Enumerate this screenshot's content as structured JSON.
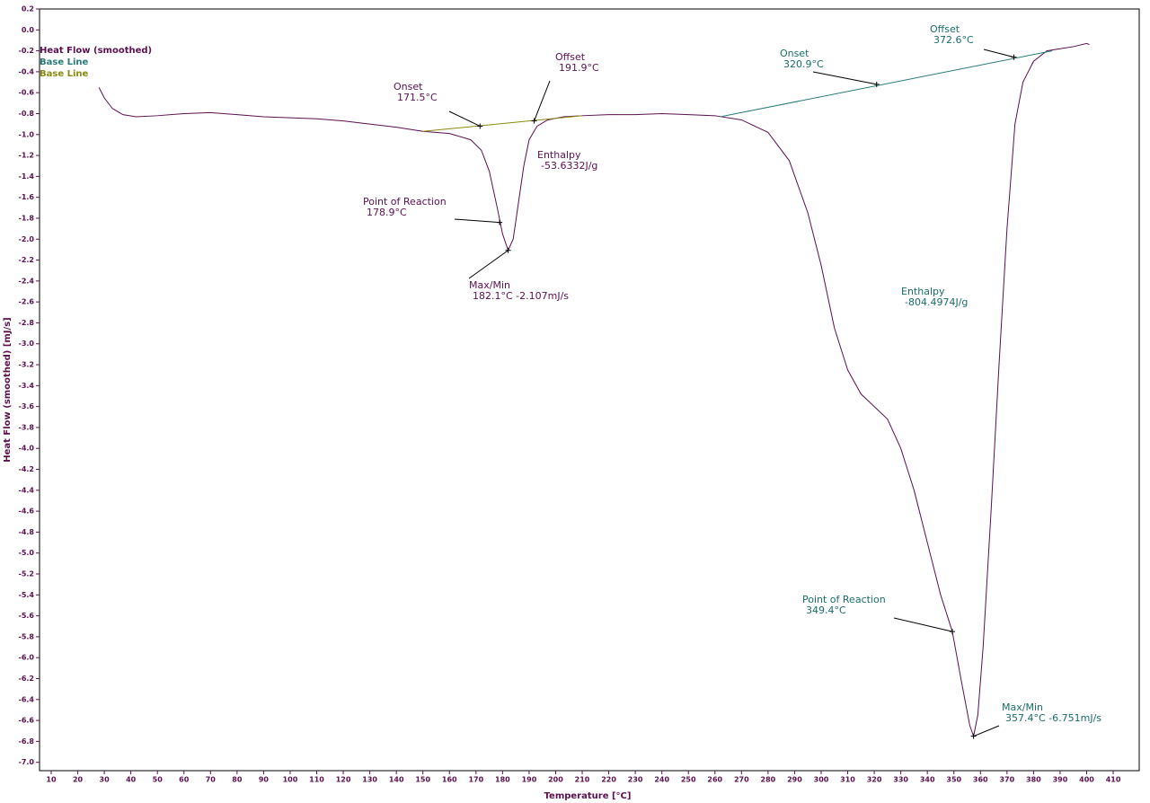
{
  "chart_data": {
    "type": "line",
    "xlabel": "Temperature  [°C]",
    "ylabel": "Heat Flow (smoothed)  [mJ/s]",
    "xlim": [
      5.6,
      419.8
    ],
    "ylim": [
      -7.08,
      0.2
    ],
    "xticks": [
      10,
      20,
      30,
      40,
      50,
      60,
      70,
      80,
      90,
      100,
      110,
      120,
      130,
      140,
      150,
      160,
      170,
      180,
      190,
      200,
      210,
      220,
      230,
      240,
      250,
      260,
      270,
      280,
      290,
      300,
      310,
      320,
      330,
      340,
      350,
      360,
      370,
      380,
      390,
      400,
      410
    ],
    "yticks": [
      0.2,
      {
        "value": 0,
        "label": "0.0"
      },
      -0.2,
      -0.4,
      -0.6,
      -0.8,
      {
        "value": -1,
        "label": "-1.0"
      },
      -1.2,
      -1.4,
      -1.6,
      -1.8,
      {
        "value": -2,
        "label": "-2.0"
      },
      -2.2,
      -2.4,
      -2.6,
      -2.8,
      {
        "value": -3,
        "label": "-3.0"
      },
      -3.2,
      -3.4,
      -3.6,
      -3.8,
      {
        "value": -4,
        "label": "-4.0"
      },
      -4.2,
      -4.4,
      -4.6,
      -4.8,
      {
        "value": -5,
        "label": "-5.0"
      },
      -5.2,
      -5.4,
      -5.6,
      -5.8,
      {
        "value": -6,
        "label": "-6.0"
      },
      -6.2,
      -6.4,
      -6.6,
      -6.8,
      {
        "value": -7,
        "label": "-7.0"
      }
    ],
    "series": [
      {
        "name": "Heat Flow (smoothed)",
        "color": "#5c1050",
        "x": [
          28,
          30,
          33,
          37,
          42,
          50,
          60,
          70,
          80,
          90,
          100,
          110,
          120,
          130,
          140,
          150,
          160,
          168,
          172,
          175,
          178,
          180,
          182.1,
          184,
          186,
          188,
          190,
          193,
          197,
          203,
          210,
          220,
          230,
          240,
          250,
          260,
          270,
          280,
          288,
          295,
          300,
          305,
          310,
          315,
          320,
          325,
          330,
          335,
          340,
          345,
          349.4,
          353,
          356,
          357.4,
          359,
          361,
          364,
          367,
          370,
          373,
          376,
          380,
          385,
          390,
          395,
          400,
          401
        ],
        "values": [
          -0.55,
          -0.65,
          -0.75,
          -0.81,
          -0.83,
          -0.82,
          -0.8,
          -0.79,
          -0.81,
          -0.83,
          -0.84,
          -0.85,
          -0.87,
          -0.9,
          -0.93,
          -0.97,
          -0.99,
          -1.05,
          -1.15,
          -1.35,
          -1.7,
          -1.95,
          -2.107,
          -2.0,
          -1.65,
          -1.3,
          -1.05,
          -0.92,
          -0.86,
          -0.83,
          -0.82,
          -0.81,
          -0.81,
          -0.8,
          -0.81,
          -0.82,
          -0.86,
          -0.98,
          -1.25,
          -1.75,
          -2.25,
          -2.85,
          -3.25,
          -3.48,
          -3.6,
          -3.72,
          -4.0,
          -4.4,
          -4.9,
          -5.4,
          -5.75,
          -6.25,
          -6.65,
          -6.751,
          -6.55,
          -5.9,
          -4.6,
          -3.2,
          -1.9,
          -0.9,
          -0.5,
          -0.3,
          -0.2,
          -0.18,
          -0.16,
          -0.13,
          -0.14
        ]
      },
      {
        "name": "Base Line",
        "color": "#2a7a78",
        "x": [
          262,
          387
        ],
        "values": [
          -0.83,
          -0.2
        ]
      },
      {
        "name": "Base Line",
        "color": "#8a8a10",
        "x": [
          150,
          210
        ],
        "values": [
          -0.97,
          -0.82
        ]
      }
    ],
    "annotations": [
      {
        "lines": [
          "Onset",
          "171.5°C"
        ],
        "x": 171.5,
        "y": -0.92,
        "color": "#5c1050"
      },
      {
        "lines": [
          "Offset",
          "191.9°C"
        ],
        "x": 191.9,
        "y": -0.87,
        "color": "#5c1050"
      },
      {
        "lines": [
          "Enthalpy",
          "-53.6332J/g"
        ],
        "color": "#5c1050"
      },
      {
        "lines": [
          "Point of Reaction",
          "178.9°C"
        ],
        "x": 178.9,
        "y": -1.84,
        "color": "#5c1050"
      },
      {
        "lines": [
          "Max/Min",
          "182.1°C  -2.107mJ/s"
        ],
        "x": 182.1,
        "y": -2.107,
        "color": "#5c1050"
      },
      {
        "lines": [
          "Onset",
          "320.9°C"
        ],
        "x": 320.9,
        "y": -0.52,
        "color": "#1a6e6a"
      },
      {
        "lines": [
          "Offset",
          "372.6°C"
        ],
        "x": 372.6,
        "y": -0.26,
        "color": "#1a6e6a"
      },
      {
        "lines": [
          "Enthalpy",
          "-804.4974J/g"
        ],
        "color": "#1a6e6a"
      },
      {
        "lines": [
          "Point of Reaction",
          "349.4°C"
        ],
        "x": 349.4,
        "y": -5.75,
        "color": "#1a6e6a"
      },
      {
        "lines": [
          "Max/Min",
          "357.4°C  -6.751mJ/s"
        ],
        "x": 357.4,
        "y": -6.751,
        "color": "#1a6e6a"
      }
    ]
  }
}
